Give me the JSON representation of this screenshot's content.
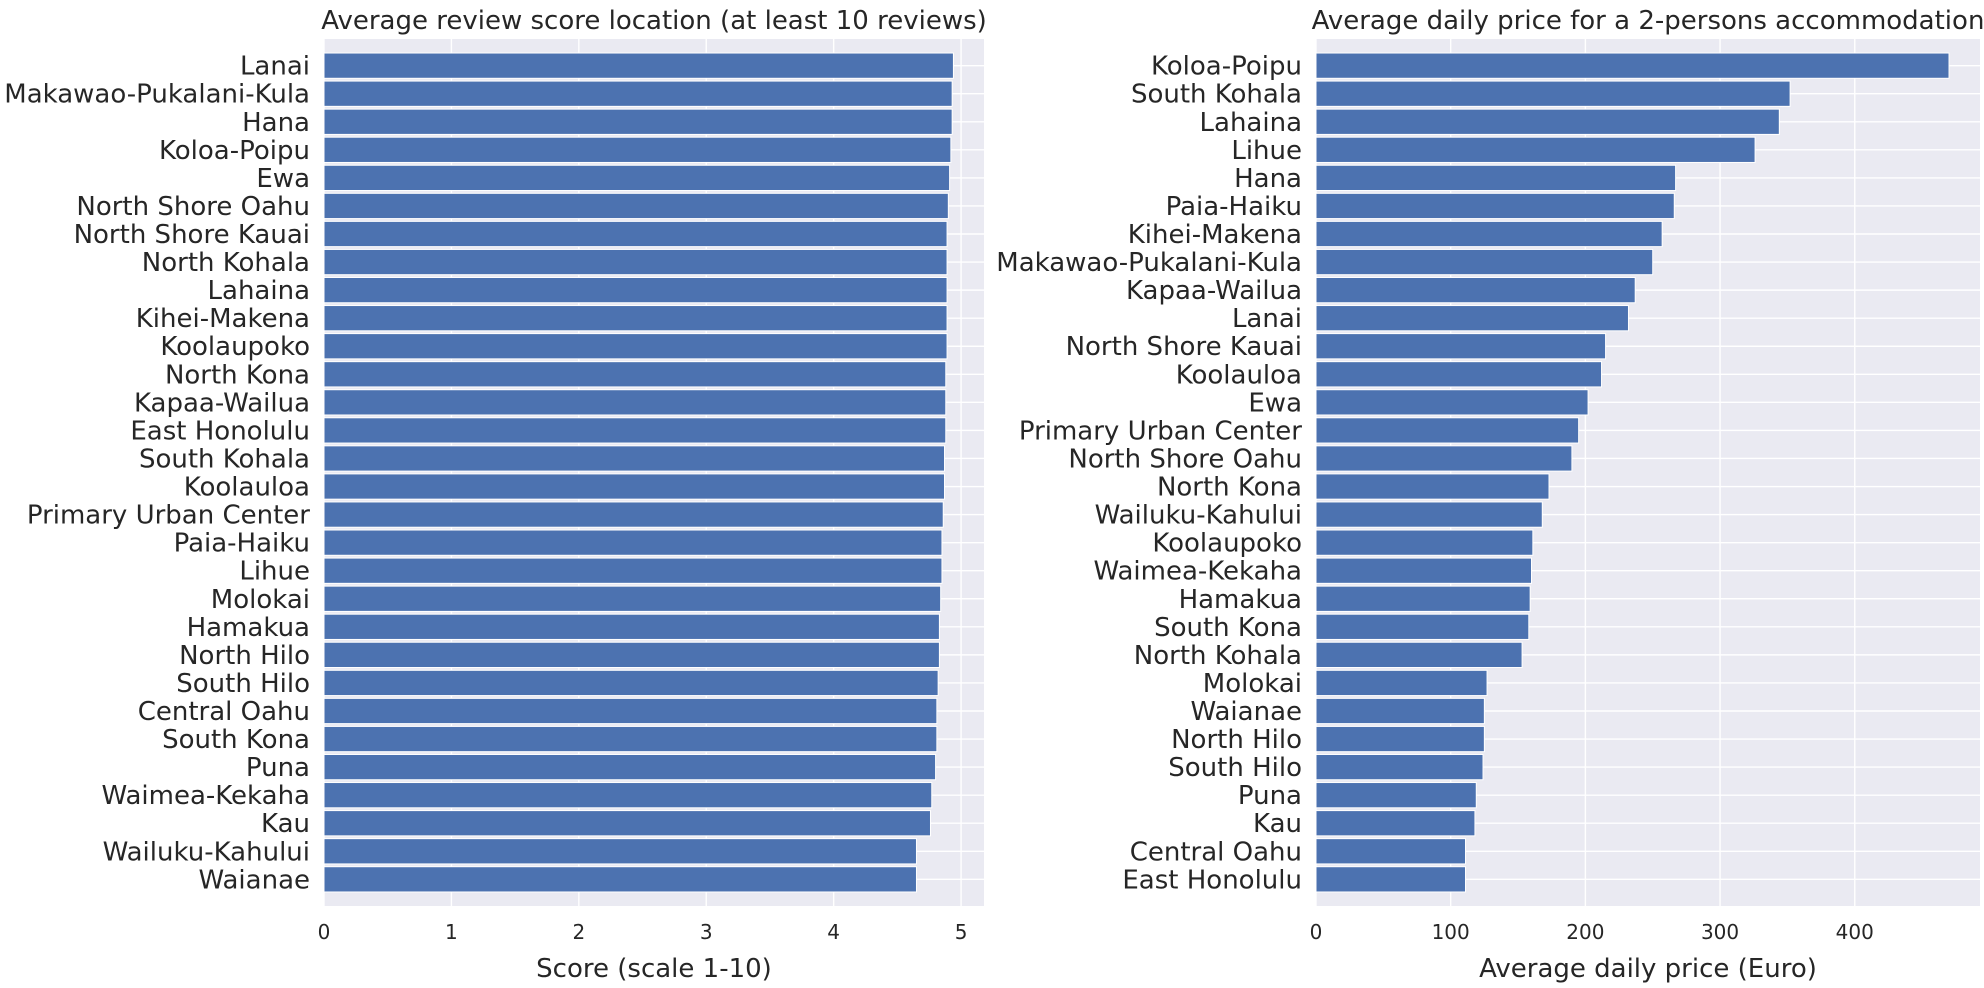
{
  "chart_data": [
    {
      "type": "bar",
      "orientation": "horizontal",
      "title": "Average review score location (at least 10 reviews)",
      "xlabel": "Score (scale 1-10)",
      "ylabel": "",
      "xlim": [
        0,
        5.18
      ],
      "xticks": [
        0,
        1,
        2,
        3,
        4,
        5
      ],
      "grid": true,
      "bar_color": "#4c72b0",
      "background": "#eaeaf2",
      "categories": [
        "Lanai",
        "Makawao-Pukalani-Kula",
        "Hana",
        "Koloa-Poipu",
        "Ewa",
        "North Shore Oahu",
        "North Shore Kauai",
        "North Kohala",
        "Lahaina",
        "Kihei-Makena",
        "Koolaupoko",
        "North Kona",
        "Kapaa-Wailua",
        "East Honolulu",
        "South Kohala",
        "Koolauloa",
        "Primary Urban Center",
        "Paia-Haiku",
        "Lihue",
        "Molokai",
        "Hamakua",
        "North Hilo",
        "South Hilo",
        "Central Oahu",
        "South Kona",
        "Puna",
        "Waimea-Kekaha",
        "Kau",
        "Wailuku-Kahului",
        "Waianae"
      ],
      "values": [
        4.94,
        4.93,
        4.93,
        4.92,
        4.91,
        4.9,
        4.89,
        4.89,
        4.89,
        4.89,
        4.89,
        4.88,
        4.88,
        4.88,
        4.87,
        4.87,
        4.86,
        4.85,
        4.85,
        4.84,
        4.83,
        4.83,
        4.82,
        4.81,
        4.81,
        4.8,
        4.77,
        4.76,
        4.65,
        4.65
      ]
    },
    {
      "type": "bar",
      "orientation": "horizontal",
      "title": "Average daily price for a 2-persons accommodation",
      "xlabel": "Average daily price (Euro)",
      "ylabel": "",
      "xlim": [
        0,
        493
      ],
      "xticks": [
        0,
        100,
        200,
        300,
        400
      ],
      "grid": true,
      "bar_color": "#4c72b0",
      "background": "#eaeaf2",
      "categories": [
        "Koloa-Poipu",
        "South Kohala",
        "Lahaina",
        "Lihue",
        "Hana",
        "Paia-Haiku",
        "Kihei-Makena",
        "Makawao-Pukalani-Kula",
        "Kapaa-Wailua",
        "Lanai",
        "North Shore Kauai",
        "Koolauloa",
        "Ewa",
        "Primary Urban Center",
        "North Shore Oahu",
        "North Kona",
        "Wailuku-Kahului",
        "Koolaupoko",
        "Waimea-Kekaha",
        "Hamakua",
        "South Kona",
        "North Kohala",
        "Molokai",
        "Waianae",
        "North Hilo",
        "South Hilo",
        "Puna",
        "Kau",
        "Central Oahu",
        "East Honolulu"
      ],
      "values": [
        470,
        352,
        344,
        326,
        267,
        266,
        257,
        250,
        237,
        232,
        215,
        212,
        202,
        195,
        190,
        173,
        168,
        161,
        160,
        159,
        158,
        153,
        127,
        125,
        125,
        124,
        119,
        118,
        111,
        111
      ]
    }
  ]
}
